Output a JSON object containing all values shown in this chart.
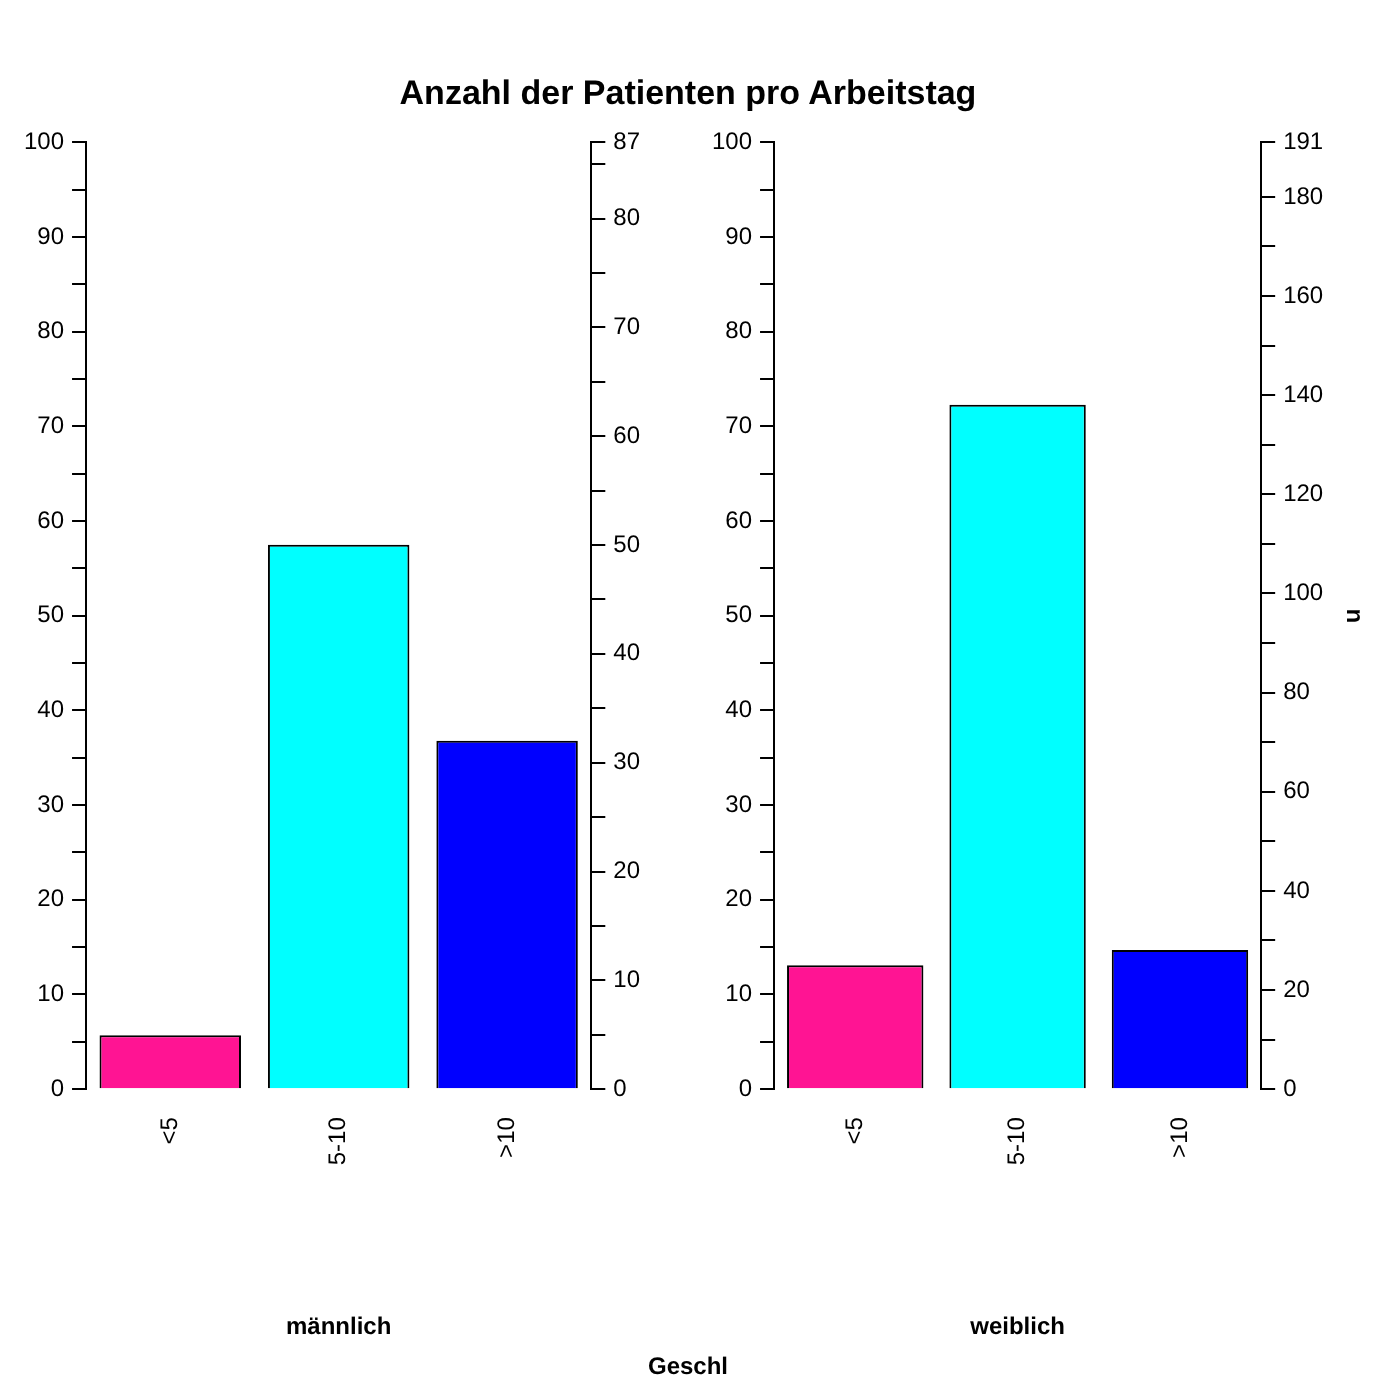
{
  "chart_data": [
    {
      "type": "bar",
      "title": "Anzahl der Patienten pro Arbeitstag",
      "xlabel": "männlich",
      "annotations": [
        "Geschl"
      ],
      "categories": [
        "<5",
        "5-10",
        ">10"
      ],
      "values": [
        5.7,
        57.5,
        36.8
      ],
      "colors": [
        "#ff1493",
        "#00ffff",
        "#0000ff"
      ],
      "ylim": [
        0,
        100
      ],
      "yticks": [
        0,
        {
          "value": 5,
          "label": null
        },
        10,
        {
          "value": 15,
          "label": null
        },
        20,
        {
          "value": 25,
          "label": null
        },
        30,
        {
          "value": 35,
          "label": null
        },
        40,
        {
          "value": 45,
          "label": null
        },
        50,
        {
          "value": 55,
          "label": null
        },
        60,
        {
          "value": 65,
          "label": null
        },
        70,
        {
          "value": 75,
          "label": null
        },
        80,
        {
          "value": 85,
          "label": null
        },
        90,
        {
          "value": 95,
          "label": null
        },
        100
      ],
      "y2lim": [
        0,
        87
      ],
      "y2ticks": [
        0,
        {
          "value": 5,
          "label": null
        },
        10,
        {
          "value": 15,
          "label": null
        },
        20,
        {
          "value": 25,
          "label": null
        },
        30,
        {
          "value": 35,
          "label": null
        },
        40,
        {
          "value": 45,
          "label": null
        },
        50,
        {
          "value": 55,
          "label": null
        },
        60,
        {
          "value": 65,
          "label": null
        },
        70,
        {
          "value": 75,
          "label": null
        },
        80,
        {
          "value": 85,
          "label": null
        },
        87
      ],
      "grid": false,
      "legend": false
    },
    {
      "type": "bar",
      "xlabel": "weiblich",
      "y2label": "n",
      "categories": [
        "<5",
        "5-10",
        ">10"
      ],
      "values": [
        13.1,
        72.3,
        14.7
      ],
      "colors": [
        "#ff1493",
        "#00ffff",
        "#0000ff"
      ],
      "ylim": [
        0,
        100
      ],
      "yticks": [
        0,
        {
          "value": 5,
          "label": null
        },
        10,
        {
          "value": 15,
          "label": null
        },
        20,
        {
          "value": 25,
          "label": null
        },
        30,
        {
          "value": 35,
          "label": null
        },
        40,
        {
          "value": 45,
          "label": null
        },
        50,
        {
          "value": 55,
          "label": null
        },
        60,
        {
          "value": 65,
          "label": null
        },
        70,
        {
          "value": 75,
          "label": null
        },
        80,
        {
          "value": 85,
          "label": null
        },
        90,
        {
          "value": 95,
          "label": null
        },
        100
      ],
      "y2lim": [
        0,
        191
      ],
      "y2ticks": [
        0,
        {
          "value": 10,
          "label": null
        },
        20,
        {
          "value": 30,
          "label": null
        },
        40,
        {
          "value": 50,
          "label": null
        },
        60,
        {
          "value": 70,
          "label": null
        },
        80,
        {
          "value": 90,
          "label": null
        },
        100,
        {
          "value": 110,
          "label": null
        },
        120,
        {
          "value": 130,
          "label": null
        },
        140,
        {
          "value": 150,
          "label": null
        },
        160,
        {
          "value": 170,
          "label": null
        },
        180,
        191
      ],
      "grid": false,
      "legend": false
    }
  ]
}
